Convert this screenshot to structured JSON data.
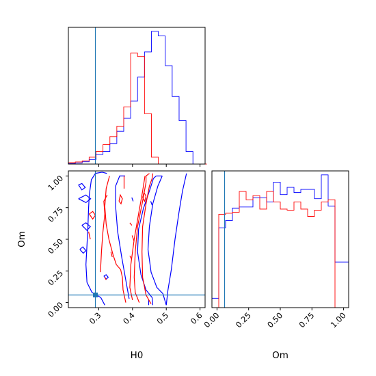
{
  "chart_data": {
    "type": "corner",
    "parameters": [
      "H0",
      "Om"
    ],
    "colors": {
      "series_a": "#0000ff",
      "series_b": "#ff0000",
      "truth": "#1f77b4"
    },
    "truth": {
      "H0": 0.29,
      "Om": 0.06
    },
    "ranges": {
      "H0": [
        0.21,
        0.615
      ],
      "Om": [
        -0.04,
        1.04
      ]
    },
    "ticks": {
      "H0": {
        "values": [
          0.3,
          0.4,
          0.5,
          0.6
        ],
        "labels": [
          "0.3",
          "0.4",
          "0.5",
          "0.6"
        ]
      },
      "Om": {
        "values": [
          0.0,
          0.25,
          0.5,
          0.75,
          1.0
        ],
        "labels": [
          "0.00",
          "0.25",
          "0.50",
          "0.75",
          "1.00"
        ]
      }
    },
    "axis_labels": {
      "x_left": "H0",
      "y_left": "Om",
      "x_right": "Om"
    },
    "hist_H0": {
      "bin_edges": [
        0.21,
        0.2305,
        0.251,
        0.2715,
        0.292,
        0.3125,
        0.333,
        0.3535,
        0.374,
        0.3945,
        0.415,
        0.4355,
        0.456,
        0.4765,
        0.497,
        0.5175,
        0.538,
        0.5585,
        0.579,
        0.5995,
        0.62
      ],
      "series": [
        {
          "color": "#0000ff",
          "values": [
            0.2,
            0.5,
            1.0,
            2.0,
            4.2,
            5.5,
            9.0,
            14.3,
            20.0,
            27.5,
            38.0,
            49.0,
            58.0,
            56.0,
            43.0,
            29.5,
            19.0,
            5.5,
            0.0,
            0.0
          ]
        },
        {
          "color": "#ff0000",
          "values": [
            0.6,
            0.9,
            1.4,
            3.0,
            5.5,
            8.5,
            12.0,
            16.5,
            25.0,
            48.5,
            47.0,
            22.0,
            3.0,
            0.0,
            0.0,
            0.0,
            0.0,
            0.0,
            0.0,
            0.0
          ]
        }
      ]
    },
    "hist_Om": {
      "bin_edges": [
        -0.04,
        0.014,
        0.068,
        0.122,
        0.176,
        0.23,
        0.284,
        0.338,
        0.392,
        0.446,
        0.5,
        0.554,
        0.608,
        0.662,
        0.716,
        0.77,
        0.824,
        0.878,
        0.932,
        0.986,
        1.04
      ],
      "series": [
        {
          "color": "#0000ff",
          "values": [
            4.5,
            38.5,
            42.0,
            48.0,
            48.5,
            48.5,
            53.0,
            53.0,
            51.0,
            60.5,
            54.5,
            58.0,
            55.5,
            57.0,
            57.0,
            52.5,
            64.0,
            49.0,
            22.0,
            22.0
          ]
        },
        {
          "color": "#ff0000",
          "values": [
            0.0,
            45.0,
            45.5,
            46.0,
            56.0,
            52.0,
            54.0,
            47.5,
            56.0,
            51.0,
            47.5,
            47.0,
            51.0,
            47.5,
            44.0,
            47.0,
            51.0,
            52.0,
            0.0,
            0.0
          ]
        }
      ]
    },
    "contours": {
      "blue": [
        [
          [
            0.46,
            -0.02
          ],
          [
            0.458,
            0.04
          ],
          [
            0.44,
            0.1
          ],
          [
            0.425,
            0.22
          ],
          [
            0.415,
            0.4
          ],
          [
            0.418,
            0.58
          ],
          [
            0.432,
            0.74
          ],
          [
            0.45,
            0.88
          ],
          [
            0.462,
            0.98
          ],
          [
            0.47,
            1.0
          ]
        ],
        [
          [
            0.5,
            -0.02
          ],
          [
            0.49,
            0.07
          ],
          [
            0.472,
            0.12
          ],
          [
            0.455,
            0.24
          ],
          [
            0.446,
            0.42
          ],
          [
            0.45,
            0.6
          ],
          [
            0.46,
            0.78
          ],
          [
            0.475,
            0.92
          ],
          [
            0.488,
            1.0
          ]
        ],
        [
          [
            0.47,
            1.0
          ],
          [
            0.488,
            1.0
          ]
        ],
        [
          [
            0.5,
            -0.02
          ],
          [
            0.505,
            0.1
          ],
          [
            0.515,
            0.26
          ],
          [
            0.526,
            0.5
          ],
          [
            0.538,
            0.72
          ],
          [
            0.548,
            0.88
          ],
          [
            0.56,
            1.02
          ]
        ],
        [
          [
            0.448,
            -0.02
          ],
          [
            0.448,
            0.02
          ]
        ],
        [
          [
            0.39,
            0.03
          ],
          [
            0.382,
            0.15
          ],
          [
            0.368,
            0.36
          ],
          [
            0.356,
            0.56
          ],
          [
            0.35,
            0.76
          ],
          [
            0.35,
            0.92
          ],
          [
            0.362,
            1.0
          ],
          [
            0.378,
            1.0
          ]
        ],
        [
          [
            0.318,
            -0.02
          ],
          [
            0.306,
            0.04
          ],
          [
            0.28,
            0.08
          ],
          [
            0.265,
            0.16
          ],
          [
            0.262,
            0.3
          ],
          [
            0.265,
            0.45
          ],
          [
            0.268,
            0.6
          ],
          [
            0.27,
            0.75
          ],
          [
            0.272,
            0.85
          ],
          [
            0.278,
            0.97
          ],
          [
            0.29,
            1.02
          ],
          [
            0.31,
            1.03
          ],
          [
            0.324,
            1.02
          ]
        ],
        [
          [
            0.24,
            0.93
          ],
          [
            0.25,
            0.89
          ],
          [
            0.26,
            0.91
          ],
          [
            0.25,
            0.94
          ],
          [
            0.24,
            0.93
          ]
        ],
        [
          [
            0.24,
            0.82
          ],
          [
            0.262,
            0.79
          ],
          [
            0.276,
            0.82
          ],
          [
            0.262,
            0.85
          ],
          [
            0.24,
            0.82
          ]
        ],
        [
          [
            0.25,
            0.61
          ],
          [
            0.265,
            0.57
          ],
          [
            0.275,
            0.6
          ],
          [
            0.262,
            0.63
          ],
          [
            0.25,
            0.61
          ]
        ],
        [
          [
            0.244,
            0.42
          ],
          [
            0.254,
            0.39
          ],
          [
            0.262,
            0.41
          ],
          [
            0.253,
            0.44
          ],
          [
            0.244,
            0.42
          ]
        ],
        [
          [
            0.315,
            0.21
          ],
          [
            0.322,
            0.185
          ],
          [
            0.328,
            0.2
          ],
          [
            0.322,
            0.22
          ],
          [
            0.315,
            0.21
          ]
        ],
        [
          [
            0.398,
            0.83
          ],
          [
            0.402,
            0.8
          ]
        ],
        [
          [
            0.454,
            0.8
          ],
          [
            0.458,
            0.77
          ]
        ]
      ],
      "red": [
        [
          [
            0.455,
            -0.01
          ],
          [
            0.44,
            0.06
          ],
          [
            0.43,
            0.2
          ],
          [
            0.428,
            0.4
          ],
          [
            0.43,
            0.6
          ],
          [
            0.44,
            0.78
          ],
          [
            0.45,
            0.92
          ],
          [
            0.458,
            0.98
          ]
        ],
        [
          [
            0.42,
            0.0
          ],
          [
            0.408,
            0.08
          ],
          [
            0.405,
            0.2
          ],
          [
            0.408,
            0.4
          ],
          [
            0.415,
            0.6
          ],
          [
            0.43,
            0.8
          ],
          [
            0.44,
            0.95
          ],
          [
            0.44,
            1.0
          ]
        ],
        [
          [
            0.4,
            0.02
          ],
          [
            0.392,
            0.12
          ],
          [
            0.395,
            0.3
          ],
          [
            0.405,
            0.5
          ],
          [
            0.418,
            0.7
          ],
          [
            0.43,
            0.88
          ],
          [
            0.437,
            1.0
          ]
        ],
        [
          [
            0.44,
            1.0
          ],
          [
            0.45,
            1.02
          ]
        ],
        [
          [
            0.458,
            0.98
          ],
          [
            0.46,
            1.02
          ]
        ],
        [
          [
            0.38,
            0.0
          ],
          [
            0.372,
            0.1
          ],
          [
            0.37,
            0.2
          ],
          [
            0.365,
            0.26
          ],
          [
            0.352,
            0.3
          ],
          [
            0.342,
            0.38
          ],
          [
            0.33,
            0.5
          ],
          [
            0.322,
            0.62
          ],
          [
            0.318,
            0.76
          ],
          [
            0.322,
            0.9
          ],
          [
            0.332,
            1.0
          ]
        ],
        [
          [
            0.375,
            0.9
          ],
          [
            0.375,
            1.0
          ]
        ],
        [
          [
            0.305,
            0.24
          ],
          [
            0.308,
            0.4
          ],
          [
            0.312,
            0.55
          ],
          [
            0.318,
            0.7
          ],
          [
            0.315,
            0.8
          ],
          [
            0.325,
            0.85
          ]
        ],
        [
          [
            0.27,
            0.56
          ],
          [
            0.275,
            0.5
          ]
        ],
        [
          [
            0.272,
            0.7
          ],
          [
            0.282,
            0.66
          ],
          [
            0.29,
            0.69
          ],
          [
            0.282,
            0.72
          ],
          [
            0.272,
            0.7
          ]
        ],
        [
          [
            0.336,
            0.4
          ],
          [
            0.34,
            0.36
          ]
        ],
        [
          [
            0.318,
            0.2
          ],
          [
            0.322,
            0.18
          ]
        ],
        [
          [
            0.36,
            0.8
          ],
          [
            0.366,
            0.78
          ],
          [
            0.37,
            0.82
          ],
          [
            0.364,
            0.85
          ],
          [
            0.36,
            0.8
          ]
        ],
        [
          [
            0.392,
            0.63
          ],
          [
            0.398,
            0.61
          ]
        ],
        [
          [
            0.43,
            0.83
          ],
          [
            0.436,
            0.8
          ],
          [
            0.44,
            0.84
          ],
          [
            0.434,
            0.87
          ],
          [
            0.43,
            0.83
          ]
        ],
        [
          [
            0.392,
            0.37
          ],
          [
            0.398,
            0.34
          ]
        ],
        [
          [
            0.399,
            0.53
          ],
          [
            0.404,
            0.49
          ]
        ]
      ]
    }
  }
}
